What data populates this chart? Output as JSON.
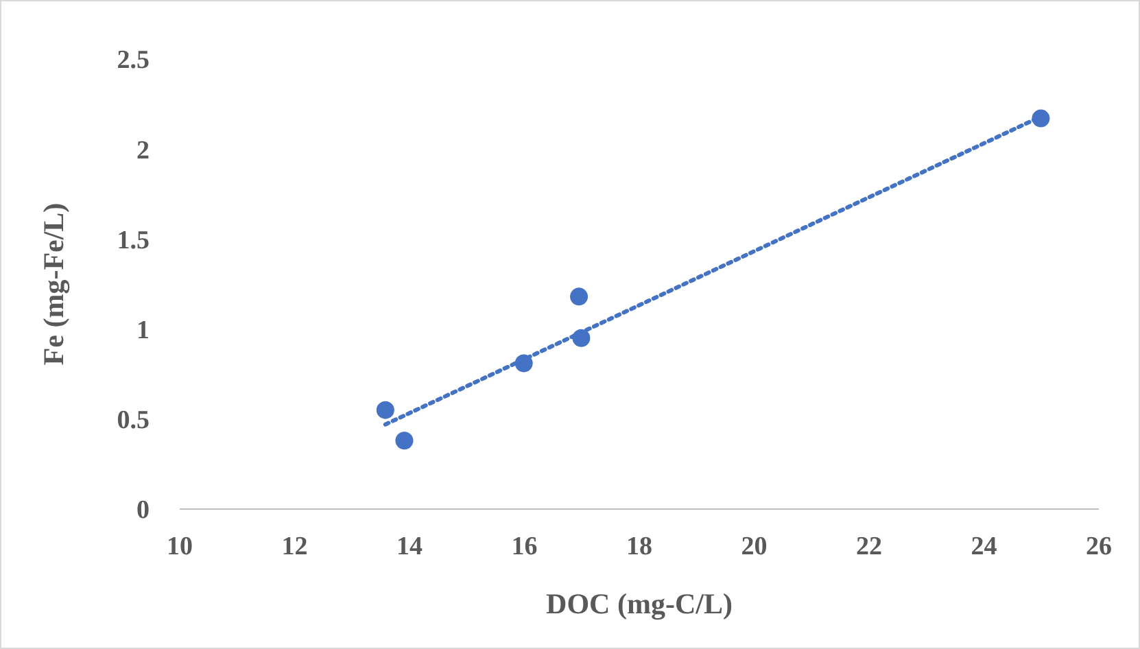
{
  "chart_data": {
    "type": "scatter",
    "xlabel": "DOC (mg-C/L)",
    "ylabel": "Fe (mg-Fe/L)",
    "xlim": [
      10,
      26
    ],
    "xticks": [
      10,
      12,
      14,
      16,
      18,
      20,
      22,
      24,
      26
    ],
    "ylim": [
      0,
      2.5
    ],
    "yticks": [
      0,
      0.5,
      1,
      1.5,
      2,
      2.5
    ],
    "grid": false,
    "series": [
      {
        "marker": "circle",
        "color": "#4472c4",
        "x": [
          13.58,
          13.91,
          15.99,
          16.95,
          16.99,
          24.99
        ],
        "values": [
          0.55,
          0.38,
          0.81,
          1.18,
          0.95,
          2.17
        ]
      },
      {
        "type": "line",
        "color": "#4472c4",
        "line_style": "dotted",
        "x": [
          13.58,
          24.99
        ],
        "values": [
          0.47,
          2.18
        ]
      }
    ]
  }
}
